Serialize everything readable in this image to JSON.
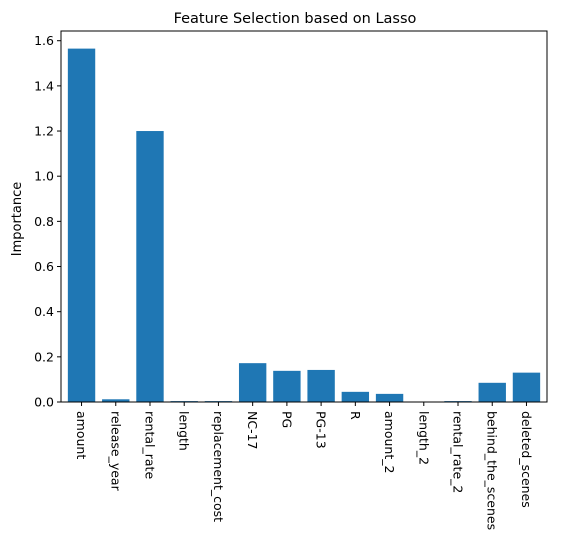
{
  "chart_data": {
    "type": "bar",
    "title": "Feature Selection based on Lasso",
    "xlabel": "",
    "ylabel": "Importance",
    "ylim": [
      0,
      1.643
    ],
    "yticks": [
      0.0,
      0.2,
      0.4,
      0.6,
      0.8,
      1.0,
      1.2,
      1.4,
      1.6
    ],
    "ytick_labels": [
      "0.0",
      "0.2",
      "0.4",
      "0.6",
      "0.8",
      "1.0",
      "1.2",
      "1.4",
      "1.6"
    ],
    "x_tick_rotation": "vertical",
    "grid": false,
    "categories": [
      "amount",
      "release_year",
      "rental_rate",
      "length",
      "replacement_cost",
      "NC-17",
      "PG",
      "PG-13",
      "R",
      "amount_2",
      "length_2",
      "rental_rate_2",
      "behind_the_scenes",
      "deleted_scenes"
    ],
    "values": [
      1.565,
      0.012,
      1.2,
      0.004,
      0.004,
      0.172,
      0.138,
      0.142,
      0.045,
      0.036,
      0.001,
      0.004,
      0.085,
      0.13
    ],
    "bar_color": "#1f77b4",
    "axis_color": "#000000"
  }
}
